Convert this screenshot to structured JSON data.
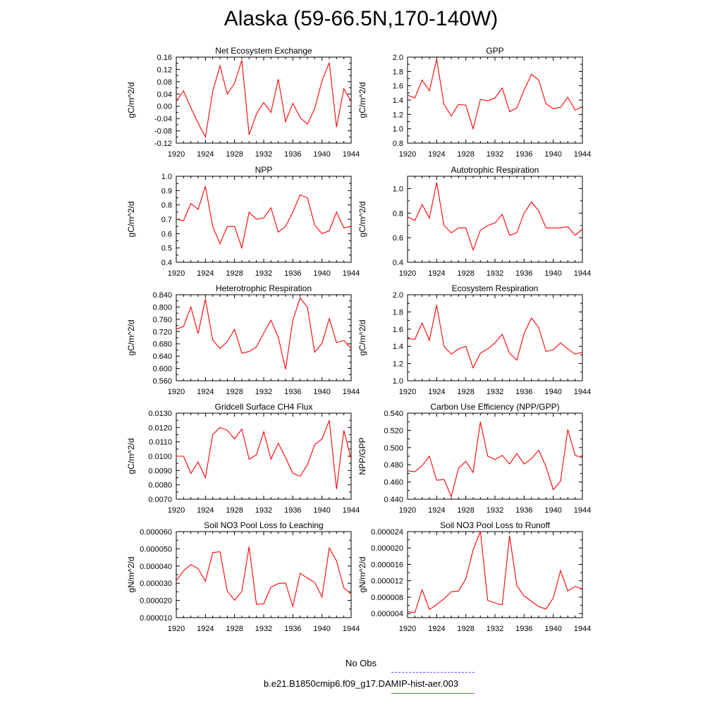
{
  "page": {
    "title": "Alaska (59-66.5N,170-140W)"
  },
  "legend": {
    "entries": [
      {
        "label": "No Obs",
        "color": "#5b5bff",
        "style": "dashed"
      },
      {
        "label": "b.e21.B1850cmip6.f09_g17.DAMIP-hist-aer.003",
        "color": "#ff4040",
        "style": "solid"
      }
    ]
  },
  "chart_data": [
    {
      "type": "line",
      "title": "Net Ecosystem Exchange",
      "ylabel": "gC/m^2/d",
      "xlim": [
        1920,
        1944
      ],
      "xticks": [
        "1920",
        "1924",
        "1928",
        "1932",
        "1936",
        "1940",
        "1944"
      ],
      "ylim": [
        -0.12,
        0.16
      ],
      "yticks": [
        "-0.12",
        "-0.08",
        "-0.04",
        "0.00",
        "0.04",
        "0.08",
        "0.12",
        "0.16"
      ],
      "series": [
        {
          "color": "#ff0000",
          "x": [
            1920,
            1921,
            1922,
            1923,
            1924,
            1925,
            1926,
            1927,
            1928,
            1929,
            1930,
            1931,
            1932,
            1933,
            1934,
            1935,
            1936,
            1937,
            1938,
            1939,
            1940,
            1941,
            1942,
            1943,
            1944
          ],
          "y": [
            0.017,
            0.05,
            -0.005,
            -0.055,
            -0.1,
            0.048,
            0.132,
            0.04,
            0.075,
            0.15,
            -0.093,
            -0.025,
            0.012,
            -0.02,
            0.088,
            -0.05,
            0.01,
            -0.037,
            -0.058,
            -0.008,
            0.083,
            0.142,
            -0.068,
            0.057,
            0.015
          ]
        }
      ]
    },
    {
      "type": "line",
      "title": "GPP",
      "ylabel": "gC/m^2/d",
      "xlim": [
        1920,
        1944
      ],
      "xticks": [
        "1920",
        "1924",
        "1928",
        "1932",
        "1936",
        "1940",
        "1944"
      ],
      "ylim": [
        0.8,
        2.0
      ],
      "yticks": [
        "0.8",
        "1.0",
        "1.2",
        "1.4",
        "1.6",
        "1.8",
        "2.0"
      ],
      "series": [
        {
          "color": "#ff0000",
          "x": [
            1920,
            1921,
            1922,
            1923,
            1924,
            1925,
            1926,
            1927,
            1928,
            1929,
            1930,
            1931,
            1932,
            1933,
            1934,
            1935,
            1936,
            1937,
            1938,
            1939,
            1940,
            1941,
            1942,
            1943,
            1944
          ],
          "y": [
            1.47,
            1.43,
            1.68,
            1.53,
            1.97,
            1.34,
            1.18,
            1.34,
            1.33,
            1.0,
            1.41,
            1.39,
            1.43,
            1.57,
            1.24,
            1.29,
            1.54,
            1.76,
            1.68,
            1.35,
            1.28,
            1.3,
            1.44,
            1.26,
            1.31
          ]
        }
      ]
    },
    {
      "type": "line",
      "title": "NPP",
      "ylabel": "gC/m^2/d",
      "xlim": [
        1920,
        1944
      ],
      "xticks": [
        "1920",
        "1924",
        "1928",
        "1932",
        "1936",
        "1940",
        "1944"
      ],
      "ylim": [
        0.4,
        1.0
      ],
      "yticks": [
        "0.4",
        "0.5",
        "0.6",
        "0.7",
        "0.8",
        "0.9",
        "1.0"
      ],
      "series": [
        {
          "color": "#ff0000",
          "x": [
            1920,
            1921,
            1922,
            1923,
            1924,
            1925,
            1926,
            1927,
            1928,
            1929,
            1930,
            1931,
            1932,
            1933,
            1934,
            1935,
            1936,
            1937,
            1938,
            1939,
            1940,
            1941,
            1942,
            1943,
            1944
          ],
          "y": [
            0.7,
            0.69,
            0.81,
            0.77,
            0.93,
            0.65,
            0.53,
            0.65,
            0.65,
            0.5,
            0.75,
            0.7,
            0.71,
            0.78,
            0.61,
            0.65,
            0.75,
            0.87,
            0.85,
            0.66,
            0.6,
            0.62,
            0.75,
            0.64,
            0.65
          ]
        }
      ]
    },
    {
      "type": "line",
      "title": "Autotrophic Respiration",
      "ylabel": "gC/m^2/d",
      "xlim": [
        1920,
        1944
      ],
      "xticks": [
        "1920",
        "1924",
        "1928",
        "1932",
        "1936",
        "1940",
        "1944"
      ],
      "ylim": [
        0.4,
        1.1
      ],
      "yticks": [
        "0.4",
        "0.6",
        "0.8",
        "1.0"
      ],
      "series": [
        {
          "color": "#ff0000",
          "x": [
            1920,
            1921,
            1922,
            1923,
            1924,
            1925,
            1926,
            1927,
            1928,
            1929,
            1930,
            1931,
            1932,
            1933,
            1934,
            1935,
            1936,
            1937,
            1938,
            1939,
            1940,
            1941,
            1942,
            1943,
            1944
          ],
          "y": [
            0.77,
            0.74,
            0.87,
            0.76,
            1.05,
            0.7,
            0.64,
            0.68,
            0.68,
            0.5,
            0.66,
            0.7,
            0.72,
            0.79,
            0.62,
            0.64,
            0.8,
            0.89,
            0.82,
            0.68,
            0.68,
            0.68,
            0.69,
            0.62,
            0.67
          ]
        }
      ]
    },
    {
      "type": "line",
      "title": "Heterotrophic Respiration",
      "ylabel": "gC/m^2/d",
      "xlim": [
        1920,
        1944
      ],
      "xticks": [
        "1920",
        "1924",
        "1928",
        "1932",
        "1936",
        "1940",
        "1944"
      ],
      "ylim": [
        0.56,
        0.84
      ],
      "yticks": [
        "0.560",
        "0.600",
        "0.640",
        "0.680",
        "0.720",
        "0.760",
        "0.800",
        "0.840"
      ],
      "series": [
        {
          "color": "#ff0000",
          "x": [
            1920,
            1921,
            1922,
            1923,
            1924,
            1925,
            1926,
            1927,
            1928,
            1929,
            1930,
            1931,
            1932,
            1933,
            1934,
            1935,
            1936,
            1937,
            1938,
            1939,
            1940,
            1941,
            1942,
            1943,
            1944
          ],
          "y": [
            0.728,
            0.737,
            0.8,
            0.713,
            0.826,
            0.693,
            0.665,
            0.687,
            0.727,
            0.65,
            0.655,
            0.67,
            0.715,
            0.757,
            0.702,
            0.597,
            0.757,
            0.83,
            0.799,
            0.653,
            0.682,
            0.762,
            0.684,
            0.691,
            0.665
          ]
        }
      ]
    },
    {
      "type": "line",
      "title": "Ecosystem Respiration",
      "ylabel": "gC/m^2/d",
      "xlim": [
        1920,
        1944
      ],
      "xticks": [
        "1920",
        "1924",
        "1928",
        "1932",
        "1936",
        "1940",
        "1944"
      ],
      "ylim": [
        1.0,
        2.0
      ],
      "yticks": [
        "1.0",
        "1.2",
        "1.4",
        "1.6",
        "1.8",
        "2.0"
      ],
      "series": [
        {
          "color": "#ff0000",
          "x": [
            1920,
            1921,
            1922,
            1923,
            1924,
            1925,
            1926,
            1927,
            1928,
            1929,
            1930,
            1931,
            1932,
            1933,
            1934,
            1935,
            1936,
            1937,
            1938,
            1939,
            1940,
            1941,
            1942,
            1943,
            1944
          ],
          "y": [
            1.49,
            1.48,
            1.67,
            1.47,
            1.88,
            1.4,
            1.31,
            1.37,
            1.4,
            1.15,
            1.32,
            1.37,
            1.44,
            1.54,
            1.32,
            1.24,
            1.55,
            1.73,
            1.62,
            1.34,
            1.36,
            1.44,
            1.37,
            1.31,
            1.33
          ]
        }
      ]
    },
    {
      "type": "line",
      "title": "Gridcell Surface CH4 Flux",
      "ylabel": "gC/m^2/d",
      "xlim": [
        1920,
        1944
      ],
      "xticks": [
        "1920",
        "1924",
        "1928",
        "1932",
        "1936",
        "1940",
        "1944"
      ],
      "ylim": [
        0.007,
        0.013
      ],
      "yticks": [
        "0.0070",
        "0.0080",
        "0.0090",
        "0.0100",
        "0.0110",
        "0.0120",
        "0.0130"
      ],
      "series": [
        {
          "color": "#ff0000",
          "x": [
            1920,
            1921,
            1922,
            1923,
            1924,
            1925,
            1926,
            1927,
            1928,
            1929,
            1930,
            1931,
            1932,
            1933,
            1934,
            1935,
            1936,
            1937,
            1938,
            1939,
            1940,
            1941,
            1942,
            1943,
            1944
          ],
          "y": [
            0.01,
            0.01,
            0.0088,
            0.0096,
            0.0085,
            0.0115,
            0.012,
            0.0118,
            0.0112,
            0.0119,
            0.0098,
            0.0101,
            0.0117,
            0.0098,
            0.0109,
            0.0099,
            0.0088,
            0.0086,
            0.0094,
            0.0108,
            0.0112,
            0.0125,
            0.0077,
            0.0118,
            0.0098
          ]
        }
      ]
    },
    {
      "type": "line",
      "title": "Carbon Use Efficiency (NPP/GPP)",
      "ylabel": "NPP/GPP",
      "xlim": [
        1920,
        1944
      ],
      "xticks": [
        "1920",
        "1924",
        "1928",
        "1932",
        "1936",
        "1940",
        "1944"
      ],
      "ylim": [
        0.44,
        0.54
      ],
      "yticks": [
        "0.440",
        "0.460",
        "0.480",
        "0.500",
        "0.520",
        "0.540"
      ],
      "series": [
        {
          "color": "#ff0000",
          "x": [
            1920,
            1921,
            1922,
            1923,
            1924,
            1925,
            1926,
            1927,
            1928,
            1929,
            1930,
            1931,
            1932,
            1933,
            1934,
            1935,
            1936,
            1937,
            1938,
            1939,
            1940,
            1941,
            1942,
            1943,
            1944
          ],
          "y": [
            0.473,
            0.472,
            0.479,
            0.49,
            0.462,
            0.463,
            0.443,
            0.476,
            0.484,
            0.471,
            0.53,
            0.49,
            0.486,
            0.491,
            0.481,
            0.493,
            0.481,
            0.487,
            0.497,
            0.478,
            0.451,
            0.461,
            0.521,
            0.491,
            0.488
          ]
        }
      ]
    },
    {
      "type": "line",
      "title": "Soil NO3 Pool Loss to Leaching",
      "ylabel": "gN/m^2/d",
      "xlim": [
        1920,
        1944
      ],
      "xticks": [
        "1920",
        "1924",
        "1928",
        "1932",
        "1936",
        "1940",
        "1944"
      ],
      "ylim": [
        1e-05,
        6e-05
      ],
      "yticks": [
        "0.000010",
        "0.000020",
        "0.000030",
        "0.000040",
        "0.000050",
        "0.000060"
      ],
      "series": [
        {
          "color": "#ff0000",
          "x": [
            1920,
            1921,
            1922,
            1923,
            1924,
            1925,
            1926,
            1927,
            1928,
            1929,
            1930,
            1931,
            1932,
            1933,
            1934,
            1935,
            1936,
            1937,
            1938,
            1939,
            1940,
            1941,
            1942,
            1943,
            1944
          ],
          "y": [
            3.15e-05,
            3.72e-05,
            4.08e-05,
            3.85e-05,
            3.12e-05,
            4.78e-05,
            4.83e-05,
            2.55e-05,
            2.01e-05,
            2.53e-05,
            5.13e-05,
            1.78e-05,
            1.8e-05,
            2.78e-05,
            2.98e-05,
            3.02e-05,
            1.65e-05,
            3.58e-05,
            3.3e-05,
            3.05e-05,
            2.2e-05,
            5.05e-05,
            4.3e-05,
            2.73e-05,
            2.38e-05
          ]
        }
      ]
    },
    {
      "type": "line",
      "title": "Soil NO3 Pool Loss to Runoff",
      "ylabel": "gN/m^2/d",
      "xlim": [
        1920,
        1944
      ],
      "xticks": [
        "1920",
        "1924",
        "1928",
        "1932",
        "1936",
        "1940",
        "1944"
      ],
      "ylim": [
        3e-06,
        2.4e-05
      ],
      "yticks": [
        "0.000004",
        "0.000008",
        "0.000012",
        "0.000016",
        "0.000020",
        "0.000024"
      ],
      "series": [
        {
          "color": "#ff0000",
          "x": [
            1920,
            1921,
            1922,
            1923,
            1924,
            1925,
            1926,
            1927,
            1928,
            1929,
            1930,
            1931,
            1932,
            1933,
            1934,
            1935,
            1936,
            1937,
            1938,
            1939,
            1940,
            1941,
            1942,
            1943,
            1944
          ],
          "y": [
            4.5e-06,
            4.2e-06,
            9.8e-06,
            5e-06,
            6.2e-06,
            7.6e-06,
            9.3e-06,
            9.5e-06,
            1.25e-05,
            1.95e-05,
            2.41e-05,
            7.2e-06,
            6.6e-06,
            6.1e-06,
            2.3e-05,
            1.08e-05,
            8.3e-06,
            7e-06,
            5.7e-06,
            5.1e-06,
            7.8e-06,
            1.45e-05,
            9.5e-06,
            1.06e-05,
            1e-05
          ]
        }
      ]
    }
  ]
}
